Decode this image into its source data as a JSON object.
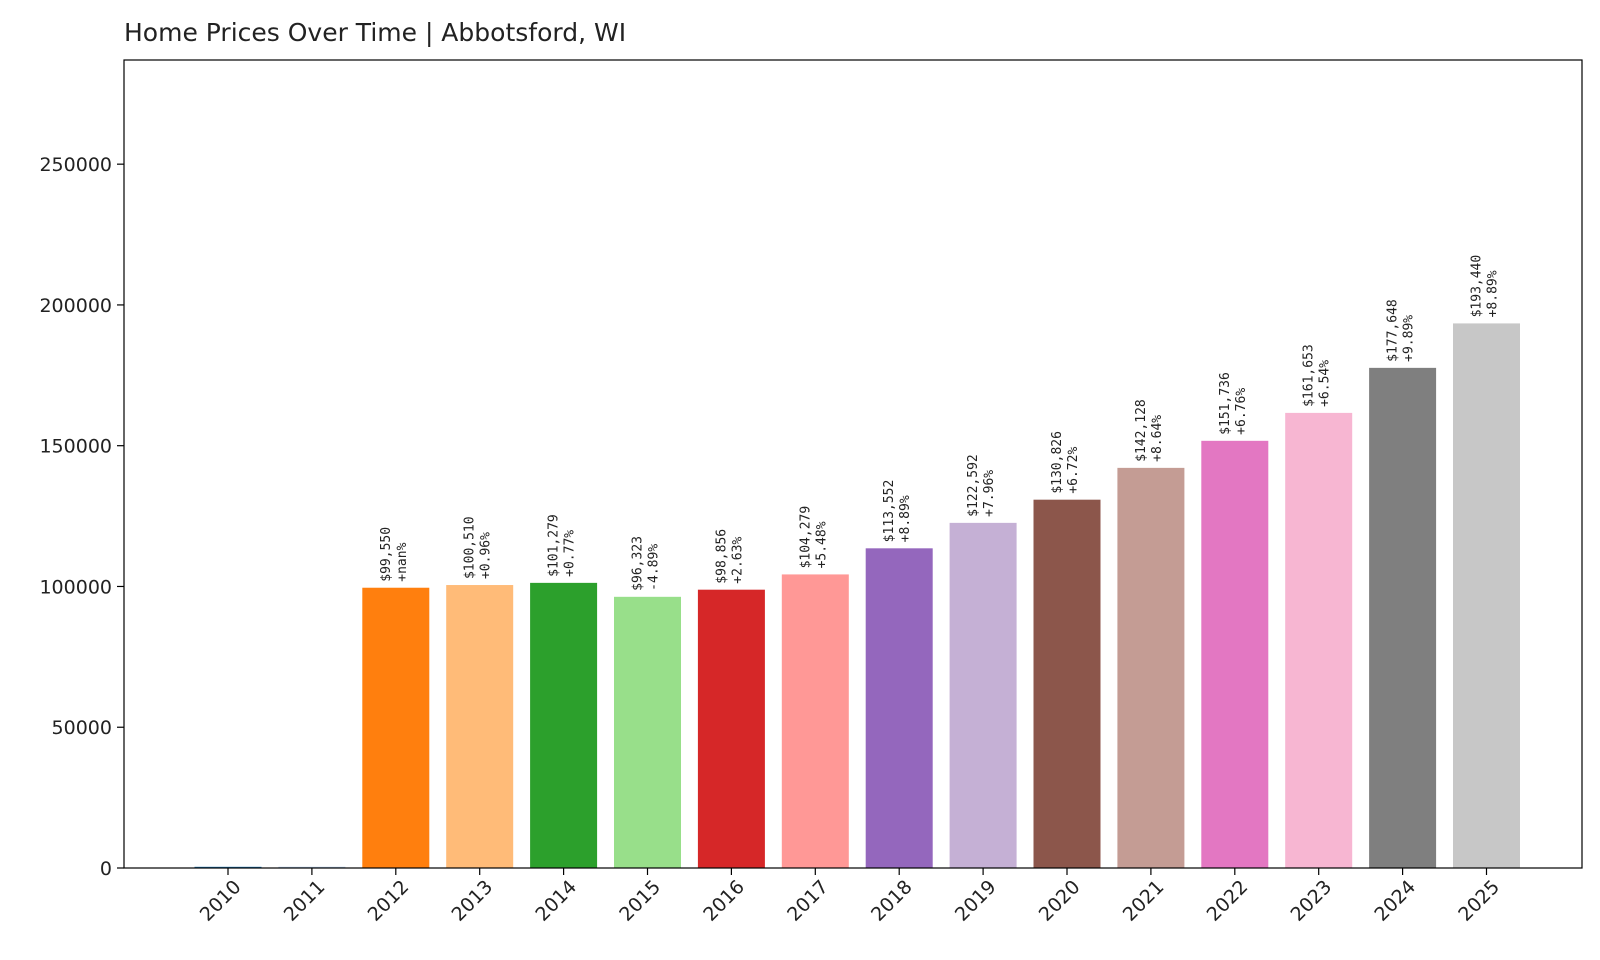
{
  "chart_data": {
    "type": "bar",
    "title": "Home Prices Over Time | Abbotsford, WI",
    "xlabel": "",
    "ylabel": "",
    "ylim": [
      0,
      287000
    ],
    "yticks": [
      0,
      50000,
      100000,
      150000,
      200000,
      250000
    ],
    "ytick_labels": [
      "0",
      "50000",
      "100000",
      "150000",
      "200000",
      "250000"
    ],
    "grid": false,
    "legend": "none",
    "categories": [
      "2010",
      "2011",
      "2012",
      "2013",
      "2014",
      "2015",
      "2016",
      "2017",
      "2018",
      "2019",
      "2020",
      "2021",
      "2022",
      "2023",
      "2024",
      "2025"
    ],
    "values": [
      0,
      0,
      99550,
      100510,
      101279,
      96323,
      98856,
      104279,
      113552,
      122592,
      130826,
      142128,
      151736,
      161653,
      177648,
      193440
    ],
    "price_labels": [
      "",
      "",
      "$99,550",
      "$100,510",
      "$101,279",
      "$96,323",
      "$98,856",
      "$104,279",
      "$113,552",
      "$122,592",
      "$130,826",
      "$142,128",
      "$151,736",
      "$161,653",
      "$177,648",
      "$193,440"
    ],
    "change_labels": [
      "",
      "",
      "+nan%",
      "+0.96%",
      "+0.77%",
      "-4.89%",
      "+2.63%",
      "+5.48%",
      "+8.89%",
      "+7.96%",
      "+6.72%",
      "+8.64%",
      "+6.76%",
      "+6.54%",
      "+9.89%",
      "+8.89%"
    ],
    "colors": [
      "#1f77b4",
      "#aec7e8",
      "#ff7f0e",
      "#ffbb78",
      "#2ca02c",
      "#98df8a",
      "#d62728",
      "#ff9896",
      "#9467bd",
      "#c5b0d5",
      "#8c564b",
      "#c49c94",
      "#e377c2",
      "#f7b6d2",
      "#7f7f7f",
      "#c7c7c7"
    ]
  }
}
